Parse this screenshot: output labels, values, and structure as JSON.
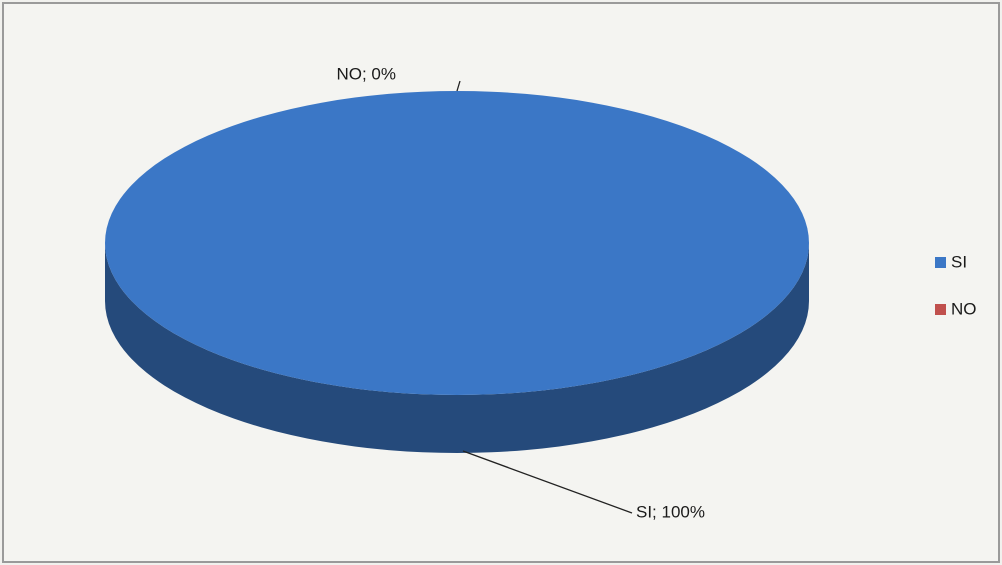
{
  "chart_data": {
    "type": "pie",
    "categories": [
      "SI",
      "NO"
    ],
    "values": [
      100,
      0
    ],
    "value_labels": [
      "SI; 100%",
      "NO; 0%"
    ],
    "colors": [
      "#3b77c6",
      "#c0504d"
    ],
    "legend": "right"
  }
}
